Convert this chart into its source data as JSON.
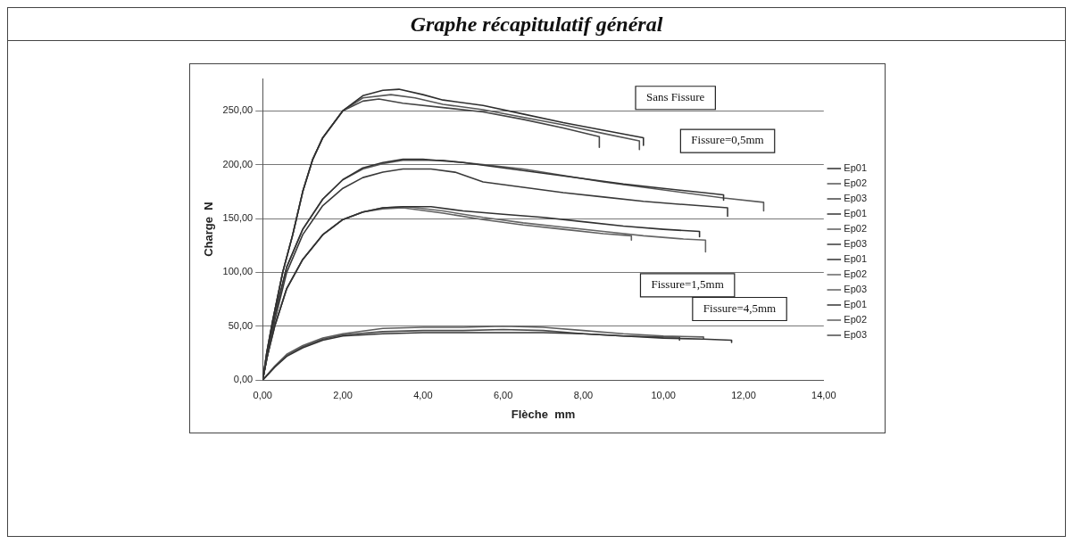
{
  "chart_data": {
    "type": "line",
    "title": "Graphe récapitulatif général",
    "xlabel": "Flèche  mm",
    "ylabel": "Charge  N",
    "xlim": [
      0,
      14
    ],
    "xticks": [
      {
        "value": 0,
        "label": "0,00"
      },
      {
        "value": 2,
        "label": "2,00"
      },
      {
        "value": 4,
        "label": "4,00"
      },
      {
        "value": 6,
        "label": "6,00"
      },
      {
        "value": 8,
        "label": "8,00"
      },
      {
        "value": 10,
        "label": "10,00"
      },
      {
        "value": 12,
        "label": "12,00"
      },
      {
        "value": 14,
        "label": "14,00"
      }
    ],
    "ylim": [
      0,
      280
    ],
    "yticks": [
      {
        "value": 0,
        "label": "0,00"
      },
      {
        "value": 50,
        "label": "50,00"
      },
      {
        "value": 100,
        "label": "100,00"
      },
      {
        "value": 150,
        "label": "150,00"
      },
      {
        "value": 200,
        "label": "200,00"
      },
      {
        "value": 250,
        "label": "250,00"
      }
    ],
    "grid": "y",
    "legend": "right",
    "marker": "none",
    "line_style": "solid",
    "series": [
      {
        "name": "Ep01",
        "color": "#2e2e2e",
        "x": [
          0,
          0.1,
          0.25,
          0.5,
          0.75,
          1,
          1.25,
          1.5,
          2,
          2.5,
          3,
          3.4,
          4,
          4.5,
          5.5,
          6.5,
          7.5,
          8.5,
          9.5,
          9.5
        ],
        "values": [
          0,
          25,
          55,
          100,
          135,
          175,
          205,
          225,
          250,
          264,
          269,
          270,
          265,
          260,
          255,
          247,
          239,
          232,
          225,
          218
        ]
      },
      {
        "name": "Ep02",
        "color": "#555555",
        "x": [
          0,
          0.1,
          0.25,
          0.5,
          0.75,
          1,
          1.25,
          1.5,
          2,
          2.5,
          3.2,
          3.8,
          4.5,
          5.5,
          6.5,
          7.5,
          8.5,
          9.4,
          9.4
        ],
        "values": [
          0,
          25,
          55,
          100,
          135,
          175,
          205,
          225,
          250,
          262,
          265,
          262,
          256,
          251,
          244,
          237,
          229,
          222,
          214
        ]
      },
      {
        "name": "Ep03",
        "color": "#444444",
        "x": [
          0,
          0.1,
          0.25,
          0.5,
          0.75,
          1,
          1.25,
          1.5,
          2,
          2.5,
          2.9,
          3.5,
          4.5,
          5.5,
          6.5,
          7.5,
          8.4,
          8.4
        ],
        "values": [
          0,
          25,
          55,
          100,
          135,
          175,
          205,
          225,
          250,
          259,
          261,
          257,
          253,
          249,
          242,
          234,
          226,
          216
        ]
      },
      {
        "name": "Ep01",
        "color": "#333333",
        "x": [
          0,
          0.15,
          0.3,
          0.6,
          1,
          1.5,
          2,
          2.5,
          3,
          3.5,
          4,
          5,
          6,
          7,
          8,
          9,
          10,
          11,
          11.5,
          11.5
        ],
        "values": [
          0,
          30,
          60,
          105,
          140,
          168,
          186,
          197,
          202,
          205,
          205,
          202,
          197,
          192,
          187,
          182,
          178,
          174,
          172,
          167
        ]
      },
      {
        "name": "Ep02",
        "color": "#5a5a5a",
        "x": [
          0,
          0.15,
          0.3,
          0.6,
          1,
          1.5,
          2,
          2.5,
          3,
          3.5,
          4.5,
          5.5,
          6.5,
          7.5,
          8.5,
          9.5,
          10.5,
          11.5,
          12.5,
          12.5
        ],
        "values": [
          0,
          30,
          60,
          105,
          140,
          168,
          186,
          196,
          201,
          204,
          204,
          200,
          196,
          190,
          184,
          179,
          174,
          169,
          165,
          157
        ]
      },
      {
        "name": "Ep03",
        "color": "#3a3a3a",
        "x": [
          0,
          0.15,
          0.3,
          0.6,
          1,
          1.5,
          2,
          2.5,
          3,
          3.5,
          4.2,
          4.8,
          5.5,
          6.5,
          7.5,
          8.5,
          9.5,
          10.5,
          11.6,
          11.6
        ],
        "values": [
          0,
          28,
          55,
          100,
          135,
          162,
          178,
          188,
          193,
          196,
          196,
          193,
          184,
          179,
          174,
          170,
          166,
          163,
          160,
          152
        ]
      },
      {
        "name": "Ep01",
        "color": "#303030",
        "x": [
          0,
          0.1,
          0.3,
          0.6,
          1,
          1.5,
          2,
          2.5,
          3,
          3.5,
          4.2,
          5,
          6,
          7,
          8,
          9,
          10,
          10.9,
          10.9
        ],
        "values": [
          0,
          20,
          50,
          85,
          112,
          135,
          149,
          156,
          160,
          161,
          161,
          157,
          154,
          151,
          147,
          143,
          140,
          138,
          133
        ]
      },
      {
        "name": "Ep02",
        "color": "#666666",
        "x": [
          0,
          0.1,
          0.3,
          0.6,
          1,
          1.5,
          2,
          2.5,
          3,
          3.6,
          4.5,
          5.5,
          6.5,
          7.5,
          8.5,
          9.5,
          10.5,
          11.05,
          11.05
        ],
        "values": [
          0,
          20,
          50,
          85,
          112,
          135,
          149,
          156,
          160,
          161,
          157,
          151,
          146,
          142,
          138,
          134,
          131,
          130,
          119
        ]
      },
      {
        "name": "Ep03",
        "color": "#606060",
        "x": [
          0,
          0.1,
          0.3,
          0.6,
          1,
          1.5,
          2,
          2.5,
          3,
          3.5,
          4.5,
          5.5,
          6.5,
          7.5,
          8.5,
          9.2,
          9.2
        ],
        "values": [
          0,
          20,
          50,
          85,
          112,
          135,
          149,
          156,
          159,
          160,
          155,
          149,
          144,
          140,
          136,
          134,
          130
        ]
      },
      {
        "name": "Ep01",
        "color": "#343434",
        "x": [
          0,
          0.3,
          0.6,
          1,
          1.5,
          2,
          3,
          4,
          5,
          6,
          7,
          8,
          9,
          10,
          11,
          11.7,
          11.7
        ],
        "values": [
          0,
          12,
          22,
          30,
          37,
          41,
          43,
          44,
          44,
          44,
          44,
          43,
          41,
          39,
          38,
          37,
          35
        ]
      },
      {
        "name": "Ep02",
        "color": "#5e5e5e",
        "x": [
          0,
          0.3,
          0.6,
          1,
          1.5,
          2,
          3,
          4,
          5,
          6,
          7,
          8,
          9,
          10,
          11,
          11,
          11
        ],
        "values": [
          0,
          13,
          24,
          32,
          39,
          43,
          48,
          49,
          49,
          50,
          49,
          46,
          43,
          41,
          40,
          40,
          38
        ]
      },
      {
        "name": "Ep03",
        "color": "#4a4a4a",
        "x": [
          0,
          0.3,
          0.6,
          1,
          1.5,
          2,
          3,
          4,
          5,
          6,
          7,
          8,
          9,
          10,
          10.4,
          10.4
        ],
        "values": [
          0,
          12,
          23,
          31,
          38,
          42,
          45,
          46,
          46,
          47,
          46,
          43,
          41,
          40,
          40,
          37
        ]
      }
    ],
    "annotations": [
      "Sans Fissure",
      "Fissure=0,5mm",
      "Fissure=1,5mm",
      "Fissure=4,5mm"
    ]
  }
}
